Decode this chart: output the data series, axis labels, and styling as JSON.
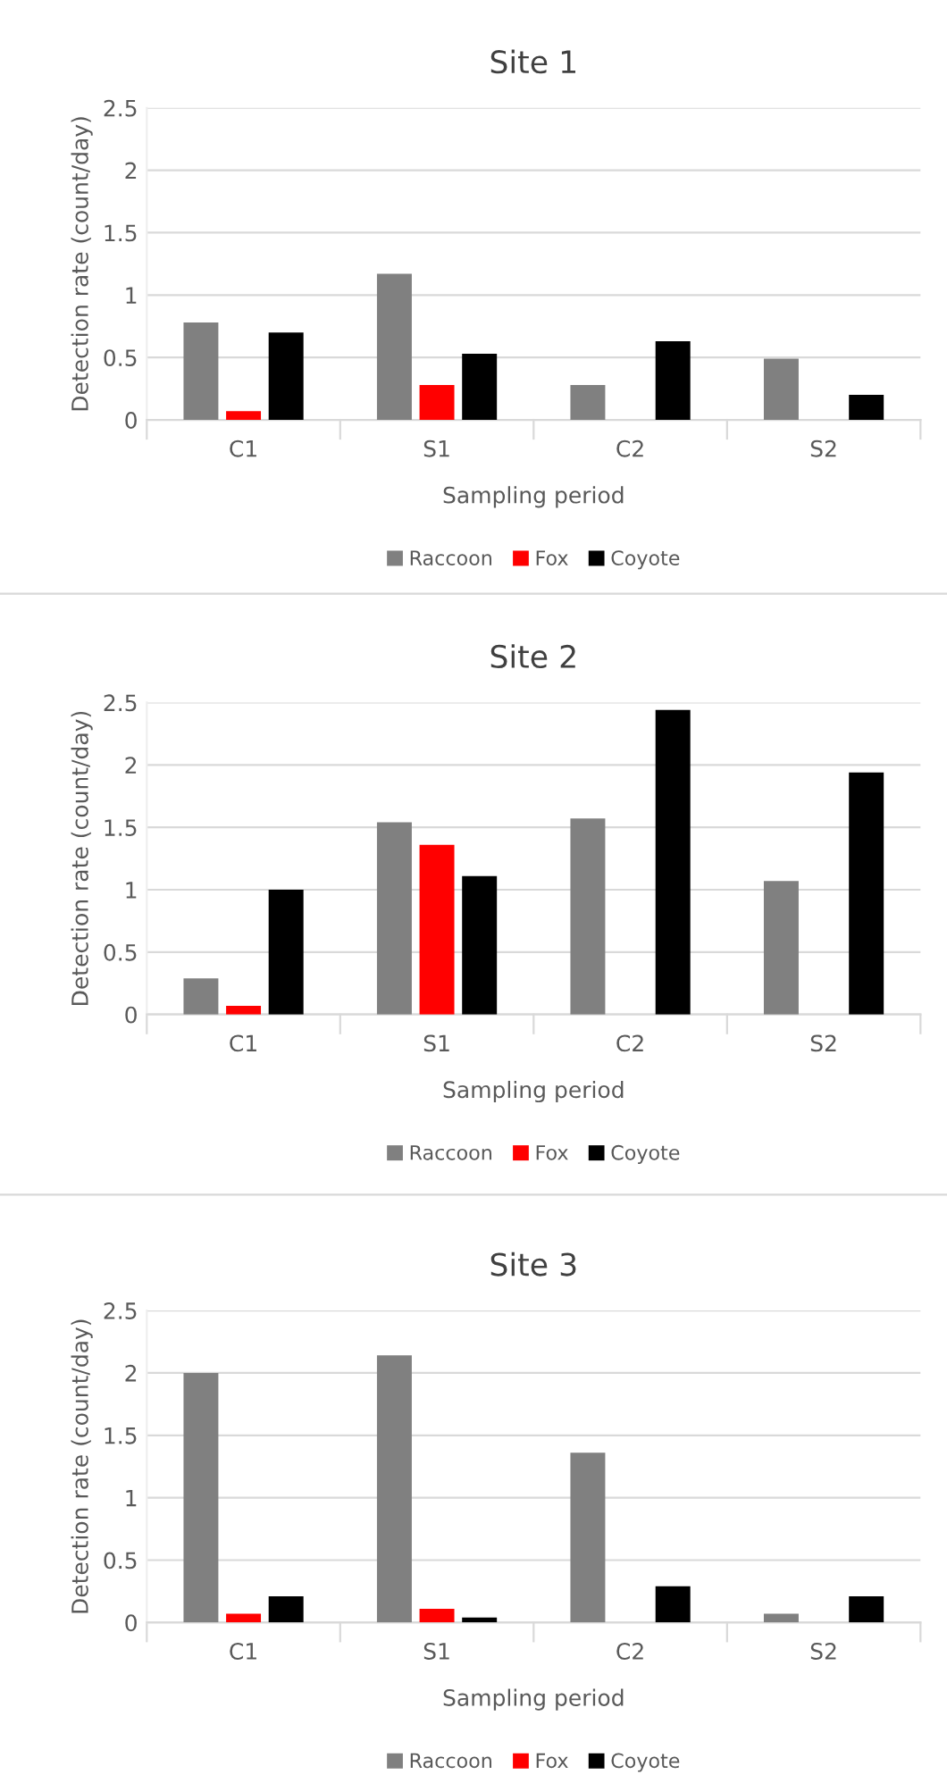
{
  "chart_data": [
    {
      "type": "bar",
      "title": "Site 1",
      "xlabel": "Sampling period",
      "ylabel": "Detection rate (count/day)",
      "categories": [
        "C1",
        "S1",
        "C2",
        "S2"
      ],
      "ylim": [
        0,
        2.5
      ],
      "yticks": [
        0,
        0.5,
        1,
        1.5,
        2,
        2.5
      ],
      "grid": "y",
      "legend": "bottom",
      "series": [
        {
          "name": "Raccoon",
          "color": "#808080",
          "values": [
            0.78,
            1.17,
            0.28,
            0.49
          ]
        },
        {
          "name": "Fox",
          "color": "#ff0000",
          "values": [
            0.07,
            0.28,
            0,
            0
          ]
        },
        {
          "name": "Coyote",
          "color": "#000000",
          "values": [
            0.7,
            0.53,
            0.63,
            0.2
          ]
        }
      ]
    },
    {
      "type": "bar",
      "title": "Site 2",
      "xlabel": "Sampling period",
      "ylabel": "Detection rate (count/day)",
      "categories": [
        "C1",
        "S1",
        "C2",
        "S2"
      ],
      "ylim": [
        0,
        2.5
      ],
      "yticks": [
        0,
        0.5,
        1,
        1.5,
        2,
        2.5
      ],
      "grid": "y",
      "legend": "bottom",
      "series": [
        {
          "name": "Raccoon",
          "color": "#808080",
          "values": [
            0.29,
            1.54,
            1.57,
            1.07
          ]
        },
        {
          "name": "Fox",
          "color": "#ff0000",
          "values": [
            0.07,
            1.36,
            0,
            0
          ]
        },
        {
          "name": "Coyote",
          "color": "#000000",
          "values": [
            1.0,
            1.11,
            2.44,
            1.94
          ]
        }
      ]
    },
    {
      "type": "bar",
      "title": "Site 3",
      "xlabel": "Sampling period",
      "ylabel": "Detection rate (count/day)",
      "categories": [
        "C1",
        "S1",
        "C2",
        "S2"
      ],
      "ylim": [
        0,
        2.5
      ],
      "yticks": [
        0,
        0.5,
        1,
        1.5,
        2,
        2.5
      ],
      "grid": "y",
      "legend": "bottom",
      "series": [
        {
          "name": "Raccoon",
          "color": "#808080",
          "values": [
            2.0,
            2.14,
            1.36,
            0.07
          ]
        },
        {
          "name": "Fox",
          "color": "#ff0000",
          "values": [
            0.07,
            0.11,
            0,
            0
          ]
        },
        {
          "name": "Coyote",
          "color": "#000000",
          "values": [
            0.21,
            0.04,
            0.29,
            0.21
          ]
        }
      ]
    }
  ]
}
